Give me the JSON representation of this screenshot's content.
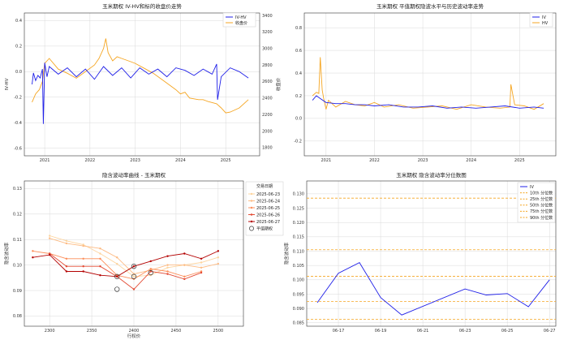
{
  "chart_data": [
    {
      "type": "line",
      "title": "玉米期权 IV-HV和标的收盘价走势",
      "ylabel": "IV-HV",
      "y2label": "收盘价",
      "x_ticks": [
        "2021",
        "2022",
        "2023",
        "2024",
        "2025"
      ],
      "y_ticks": [
        "-0.6",
        "-0.4",
        "-0.2",
        "0.0",
        "0.2",
        "0.4"
      ],
      "y2_ticks": [
        "1800",
        "2000",
        "2200",
        "2400",
        "2600",
        "2800",
        "3000",
        "3200",
        "3400"
      ],
      "xlim": [
        2020.55,
        2025.75
      ],
      "ylim": [
        -0.66,
        0.46
      ],
      "y2lim": [
        1700,
        3430
      ],
      "legend": [
        "IV-HV",
        "收盘价"
      ],
      "colors": {
        "iv_hv": "#1f1fe8",
        "close": "#f5a623"
      },
      "series": [
        {
          "name": "IV-HV",
          "x": [
            2020.72,
            2020.75,
            2020.8,
            2020.85,
            2020.9,
            2020.95,
            2020.97,
            2021.0,
            2021.05,
            2021.1,
            2021.3,
            2021.5,
            2021.7,
            2021.9,
            2022.1,
            2022.3,
            2022.5,
            2022.7,
            2022.9,
            2023.1,
            2023.3,
            2023.5,
            2023.7,
            2023.9,
            2024.1,
            2024.3,
            2024.5,
            2024.7,
            2024.8,
            2024.82,
            2024.9,
            2025.1,
            2025.3,
            2025.5
          ],
          "y": [
            -0.1,
            -0.01,
            -0.07,
            -0.03,
            -0.05,
            0.02,
            -0.41,
            0.07,
            -0.04,
            0.04,
            -0.02,
            0.03,
            -0.04,
            0.02,
            -0.06,
            0.04,
            -0.03,
            0.03,
            -0.05,
            0.03,
            -0.02,
            0.02,
            -0.04,
            0.03,
            0.01,
            -0.03,
            0.02,
            -0.02,
            0.06,
            -0.22,
            -0.04,
            0.03,
            0.0,
            -0.05
          ]
        },
        {
          "name": "收盘价",
          "x": [
            2020.72,
            2020.8,
            2020.88,
            2020.95,
            2021.0,
            2021.1,
            2021.3,
            2021.5,
            2021.7,
            2021.9,
            2022.1,
            2022.2,
            2022.3,
            2022.35,
            2022.4,
            2022.5,
            2022.6,
            2022.7,
            2022.8,
            2022.9,
            2023.0,
            2023.2,
            2023.4,
            2023.6,
            2023.8,
            2023.9,
            2024.0,
            2024.1,
            2024.2,
            2024.4,
            2024.5,
            2024.6,
            2024.8,
            2024.9,
            2025.0,
            2025.1,
            2025.3,
            2025.5
          ],
          "y": [
            2350,
            2450,
            2500,
            2600,
            2820,
            2880,
            2750,
            2700,
            2640,
            2720,
            2800,
            2880,
            3000,
            3120,
            2950,
            2850,
            2900,
            2880,
            2860,
            2840,
            2820,
            2760,
            2700,
            2620,
            2540,
            2500,
            2450,
            2470,
            2400,
            2380,
            2380,
            2360,
            2330,
            2280,
            2220,
            2230,
            2280,
            2380
          ]
        }
      ]
    },
    {
      "type": "line",
      "title": "玉米期权 平值期权隐波水平与历史波动率走势",
      "x_ticks": [
        "2021",
        "2022",
        "2023",
        "2024",
        "2025"
      ],
      "y_ticks": [
        "-0.2",
        "0.0",
        "0.2",
        "0.4",
        "0.6",
        "0.8"
      ],
      "xlim": [
        2020.55,
        2025.75
      ],
      "ylim": [
        -0.33,
        0.93
      ],
      "legend": [
        "IV",
        "HV"
      ],
      "colors": {
        "iv": "#1f1fe8",
        "hv": "#f5a623"
      },
      "series": [
        {
          "name": "IV",
          "x": [
            2020.72,
            2020.8,
            2020.9,
            2021.0,
            2021.2,
            2021.4,
            2021.6,
            2021.8,
            2022.0,
            2022.3,
            2022.6,
            2022.9,
            2023.2,
            2023.5,
            2023.8,
            2024.1,
            2024.4,
            2024.7,
            2025.0,
            2025.3,
            2025.5
          ],
          "y": [
            0.16,
            0.2,
            0.17,
            0.14,
            0.13,
            0.13,
            0.12,
            0.12,
            0.11,
            0.12,
            0.1,
            0.1,
            0.11,
            0.09,
            0.1,
            0.09,
            0.1,
            0.11,
            0.09,
            0.1,
            0.09
          ]
        },
        {
          "name": "HV",
          "x": [
            2020.72,
            2020.8,
            2020.85,
            2020.88,
            2020.92,
            2020.95,
            2021.0,
            2021.05,
            2021.2,
            2021.4,
            2021.6,
            2021.8,
            2022.0,
            2022.2,
            2022.5,
            2022.8,
            2023.1,
            2023.4,
            2023.7,
            2024.0,
            2024.3,
            2024.6,
            2024.8,
            2024.82,
            2024.9,
            2025.1,
            2025.3,
            2025.5
          ],
          "y": [
            0.2,
            0.23,
            0.22,
            0.54,
            0.25,
            0.18,
            0.08,
            0.16,
            0.1,
            0.15,
            0.12,
            0.11,
            0.14,
            0.1,
            0.12,
            0.09,
            0.1,
            0.11,
            0.08,
            0.12,
            0.1,
            0.09,
            0.1,
            0.3,
            0.12,
            0.11,
            0.08,
            0.13
          ]
        }
      ]
    },
    {
      "type": "line",
      "title": "隐含波动率曲线 - 玉米期权",
      "xlabel": "行权价",
      "ylabel": "隐含波动率",
      "x_ticks": [
        "2300",
        "2350",
        "2400",
        "2450",
        "2500"
      ],
      "y_ticks": [
        "0.08",
        "0.09",
        "0.10",
        "0.11",
        "0.12",
        "0.13"
      ],
      "xlim": [
        2270,
        2530
      ],
      "ylim": [
        0.076,
        0.133
      ],
      "legend_title": "交易日期",
      "legend": [
        "2025-06-23",
        "2025-06-24",
        "2025-06-25",
        "2025-06-26",
        "2025-06-27",
        "平值期权"
      ],
      "colors": {
        "d0623": "#fdd49e",
        "d0624": "#fdbb84",
        "d0625": "#fc8d59",
        "d0626": "#e34a33",
        "d0627": "#b30000"
      },
      "series": [
        {
          "name": "2025-06-23",
          "x": [
            2300,
            2320,
            2340,
            2360,
            2380,
            2400,
            2420,
            2440,
            2460,
            2480,
            2500
          ],
          "y": [
            0.1115,
            0.1095,
            0.108,
            0.1045,
            0.1005,
            0.0955,
            0.096,
            0.099,
            0.1,
            0.101,
            0.103
          ]
        },
        {
          "name": "2025-06-24",
          "x": [
            2300,
            2320,
            2340,
            2360,
            2380,
            2400,
            2420,
            2440,
            2460,
            2480,
            2500
          ],
          "y": [
            0.1105,
            0.1085,
            0.1075,
            0.1065,
            0.103,
            0.0965,
            0.098,
            0.1,
            0.1,
            0.099,
            0.1005
          ]
        },
        {
          "name": "2025-06-25",
          "x": [
            2280,
            2300,
            2320,
            2340,
            2360,
            2380,
            2400,
            2420,
            2440,
            2460,
            2480
          ],
          "y": [
            0.1055,
            0.1045,
            0.1025,
            0.1025,
            0.1025,
            0.096,
            0.0945,
            0.0985,
            0.0975,
            0.0955,
            0.0975
          ]
        },
        {
          "name": "2025-06-26",
          "x": [
            2300,
            2320,
            2340,
            2360,
            2380,
            2400,
            2420,
            2440,
            2460,
            2480
          ],
          "y": [
            0.1045,
            0.0995,
            0.0995,
            0.0995,
            0.0955,
            0.0905,
            0.0975,
            0.0965,
            0.0945,
            0.097
          ]
        },
        {
          "name": "2025-06-27",
          "x": [
            2280,
            2300,
            2320,
            2340,
            2360,
            2380,
            2400,
            2420,
            2440,
            2460,
            2480,
            2500
          ],
          "y": [
            0.103,
            0.104,
            0.0975,
            0.0975,
            0.096,
            0.0955,
            0.0995,
            0.1015,
            0.1035,
            0.1045,
            0.1025,
            0.1055
          ]
        }
      ],
      "atm_points": [
        {
          "x": 2380,
          "y": 0.0955
        },
        {
          "x": 2400,
          "y": 0.0995
        },
        {
          "x": 2400,
          "y": 0.0955
        },
        {
          "x": 2380,
          "y": 0.0905
        },
        {
          "x": 2420,
          "y": 0.097
        }
      ]
    },
    {
      "type": "line",
      "title": "玉米期权 隐含波动率分位数图",
      "ylabel": "隐含波动率",
      "x_ticks": [
        "06-17",
        "06-19",
        "06-21",
        "06-23",
        "06-25",
        "06-27"
      ],
      "y_ticks": [
        "0.085",
        "0.090",
        "0.095",
        "0.100",
        "0.105",
        "0.110",
        "0.115",
        "0.120",
        "0.125",
        "0.130"
      ],
      "xlim": [
        15.5,
        27.3
      ],
      "ylim": [
        0.0838,
        0.1345
      ],
      "legend": [
        "IV",
        "10th 分位数",
        "25th 分位数",
        "50th 分位数",
        "75th 分位数",
        "90th 分位数"
      ],
      "colors": {
        "iv": "#1f1fe8",
        "quantile": "#f5a623"
      },
      "series": [
        {
          "name": "IV",
          "x": [
            16,
            17,
            18,
            19,
            20,
            23,
            24,
            25,
            26,
            27
          ],
          "y": [
            0.092,
            0.1023,
            0.106,
            0.0938,
            0.0877,
            0.0968,
            0.0947,
            0.0952,
            0.0906,
            0.1
          ]
        }
      ],
      "quantiles": [
        0.0862,
        0.0924,
        0.1012,
        0.1105,
        0.1285
      ]
    }
  ]
}
